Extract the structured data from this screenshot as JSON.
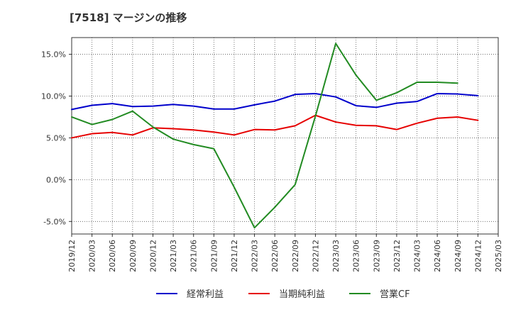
{
  "chart_data": {
    "type": "line",
    "title": "[7518]  マージンの推移",
    "xlabel": "",
    "ylabel": "",
    "x": [
      "2019/12",
      "2020/03",
      "2020/06",
      "2020/09",
      "2020/12",
      "2021/03",
      "2021/06",
      "2021/09",
      "2021/12",
      "2022/03",
      "2022/06",
      "2022/09",
      "2022/12",
      "2023/03",
      "2023/06",
      "2023/09",
      "2023/12",
      "2024/03",
      "2024/06",
      "2024/09",
      "2024/12",
      "2025/03"
    ],
    "ylim": [
      -6.5,
      17.0
    ],
    "yticks": [
      -5.0,
      0.0,
      5.0,
      10.0,
      15.0
    ],
    "ytick_labels": [
      "-5.0%",
      "0.0%",
      "5.0%",
      "10.0%",
      "15.0%"
    ],
    "grid": true,
    "legend_position": "bottom",
    "series": [
      {
        "name": "経常利益",
        "color": "#0000cc",
        "values": [
          8.4,
          8.9,
          9.1,
          8.75,
          8.8,
          9.0,
          8.8,
          8.45,
          8.45,
          8.95,
          9.4,
          10.2,
          10.3,
          9.9,
          8.85,
          8.65,
          9.15,
          9.35,
          10.3,
          10.25,
          10.05,
          null
        ]
      },
      {
        "name": "当期純利益",
        "color": "#e60000",
        "values": [
          5.0,
          5.5,
          5.65,
          5.35,
          6.2,
          6.1,
          5.95,
          5.7,
          5.35,
          6.0,
          5.95,
          6.45,
          7.7,
          6.9,
          6.5,
          6.45,
          6.0,
          6.75,
          7.35,
          7.5,
          7.1,
          null
        ]
      },
      {
        "name": "営業CF",
        "color": "#228b22",
        "values": [
          7.5,
          6.6,
          7.2,
          8.2,
          6.3,
          4.85,
          4.2,
          3.7,
          -0.9,
          -5.75,
          -3.3,
          -0.6,
          7.6,
          16.3,
          12.5,
          9.5,
          10.4,
          11.65,
          11.65,
          11.55,
          null,
          null
        ]
      }
    ]
  }
}
